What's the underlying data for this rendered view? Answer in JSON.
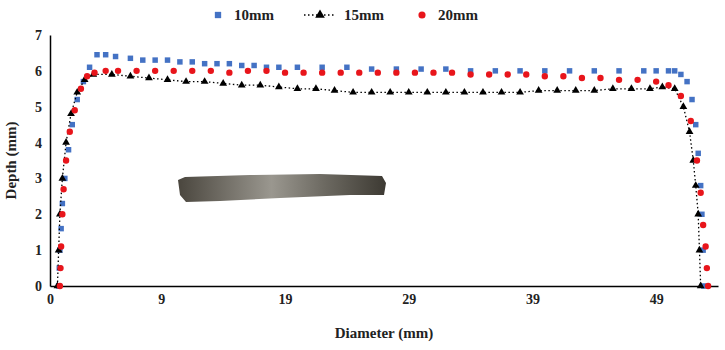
{
  "chart_data": {
    "type": "scatter",
    "x_label": "Diameter (mm)",
    "y_label": "Depth (mm)",
    "xlim": [
      0,
      54
    ],
    "xticks": [
      0,
      9,
      19,
      29,
      39,
      49
    ],
    "ylim": [
      0,
      7
    ],
    "yticks": [
      0,
      1,
      2,
      3,
      4,
      5,
      6,
      7
    ],
    "grid": false,
    "legend": "top",
    "series": [
      {
        "name": "10mm",
        "color": "#4472c4",
        "marker": "square",
        "line_style": "none",
        "x": [
          0.7,
          0.75,
          0.8,
          0.9,
          1.0,
          1.2,
          1.5,
          1.8,
          2.2,
          2.7,
          3.2,
          3.8,
          4.5,
          5.3,
          6.5,
          7.5,
          8.5,
          9.5,
          10.5,
          11.5,
          12.5,
          13.5,
          14.5,
          15.5,
          16.5,
          17.5,
          18.5,
          20,
          22,
          24,
          26,
          28,
          30,
          32,
          34,
          36,
          38,
          40,
          42,
          44,
          46,
          48,
          49,
          50,
          50.5,
          51,
          51.5,
          51.9,
          52.2,
          52.4,
          52.6,
          52.7,
          52.8,
          52.85
        ],
        "values": [
          0,
          0.5,
          1.0,
          1.6,
          2.3,
          3.0,
          3.8,
          4.5,
          5.2,
          5.7,
          6.1,
          6.45,
          6.45,
          6.4,
          6.35,
          6.3,
          6.3,
          6.3,
          6.25,
          6.25,
          6.2,
          6.2,
          6.2,
          6.15,
          6.15,
          6.1,
          6.1,
          6.1,
          6.1,
          6.1,
          6.05,
          6.05,
          6.05,
          6.05,
          6.0,
          6.0,
          6.0,
          6.0,
          6.0,
          6.0,
          6.0,
          6.0,
          6.0,
          6.0,
          6.0,
          5.9,
          5.7,
          5.2,
          4.5,
          3.7,
          2.8,
          2.0,
          1.0,
          0
        ]
      },
      {
        "name": "15mm",
        "color": "#000000",
        "marker": "triangle",
        "line_style": "dotted",
        "x": [
          0.6,
          0.7,
          0.8,
          1.0,
          1.3,
          1.7,
          2.2,
          2.8,
          3.5,
          5,
          6.5,
          8,
          9.5,
          11,
          12.5,
          14,
          15.5,
          17,
          18.5,
          20,
          21.5,
          23,
          24.5,
          26,
          27.5,
          29,
          30.5,
          32,
          33.5,
          35,
          36.5,
          38,
          39.5,
          41,
          42.5,
          44,
          45.5,
          47,
          48.5,
          49.5,
          50.5,
          51.2,
          51.7,
          52.0,
          52.2,
          52.4,
          52.5,
          52.6
        ],
        "values": [
          0,
          1.0,
          2.0,
          3.0,
          4.0,
          4.8,
          5.4,
          5.75,
          5.9,
          5.9,
          5.85,
          5.8,
          5.75,
          5.7,
          5.7,
          5.65,
          5.6,
          5.6,
          5.55,
          5.5,
          5.5,
          5.45,
          5.4,
          5.4,
          5.4,
          5.4,
          5.4,
          5.4,
          5.4,
          5.4,
          5.4,
          5.4,
          5.45,
          5.45,
          5.45,
          5.45,
          5.5,
          5.5,
          5.5,
          5.55,
          5.5,
          5.0,
          4.3,
          3.5,
          2.8,
          2.0,
          1.0,
          0
        ]
      },
      {
        "name": "20mm",
        "color": "#e8151b",
        "marker": "circle",
        "line_style": "none",
        "x": [
          0.8,
          0.85,
          0.9,
          1.0,
          1.1,
          1.3,
          1.6,
          2.0,
          2.5,
          3.0,
          3.6,
          4.5,
          5.5,
          7,
          8.5,
          10,
          11.5,
          13,
          14.5,
          16,
          17.5,
          19,
          20.5,
          22,
          23.5,
          25,
          26.5,
          28,
          29.5,
          31,
          32.5,
          34,
          35.5,
          37,
          38.5,
          40,
          41.5,
          43,
          44.5,
          46,
          47.5,
          49,
          50,
          51,
          51.8,
          52.3,
          52.6,
          52.8,
          53.0,
          53.1,
          53.2
        ],
        "values": [
          0,
          0.5,
          1.1,
          2.0,
          2.7,
          3.5,
          4.3,
          4.9,
          5.5,
          5.85,
          5.95,
          6.0,
          6.0,
          6.0,
          6.0,
          6.0,
          6.0,
          6.0,
          5.95,
          6.0,
          6.0,
          5.95,
          5.95,
          5.95,
          5.95,
          5.95,
          5.95,
          5.95,
          5.95,
          5.95,
          5.95,
          5.9,
          5.9,
          5.9,
          5.9,
          5.85,
          5.85,
          5.8,
          5.8,
          5.75,
          5.75,
          5.7,
          5.6,
          5.3,
          4.6,
          3.5,
          2.6,
          1.7,
          1.1,
          0.5,
          0
        ]
      }
    ]
  }
}
